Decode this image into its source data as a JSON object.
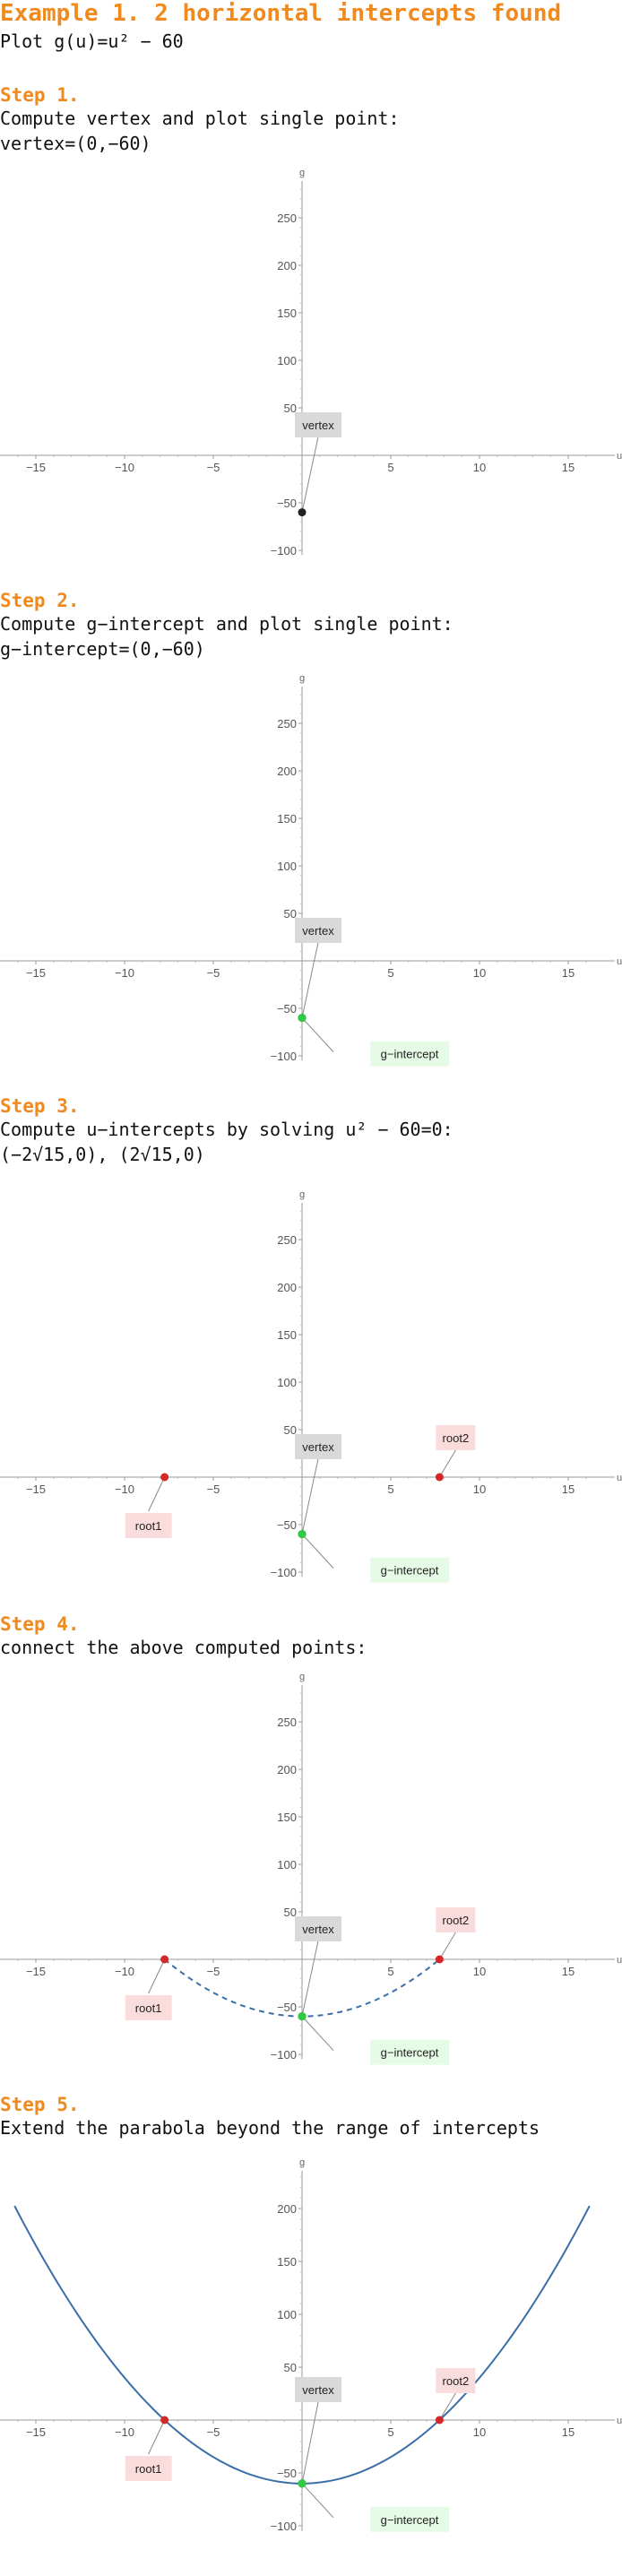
{
  "header": {
    "title": "Example 1. 2 horizontal intercepts found",
    "subtitle": "Plot g(u)=u² − 60"
  },
  "steps": [
    {
      "title": "Step 1.",
      "lines": [
        "Compute vertex and plot single point:",
        "vertex=(0,−60)"
      ]
    },
    {
      "title": "Step 2.",
      "lines": [
        "Compute g−intercept and plot single point:",
        "g−intercept=(0,−60)"
      ]
    },
    {
      "title": "Step 3.",
      "lines": [
        "Compute u−intercepts by solving u² − 60=0:",
        "(−2√15,0),  (2√15,0)"
      ]
    },
    {
      "title": "Step 4.",
      "lines": [
        "connect the above computed points:"
      ]
    },
    {
      "title": "Step 5.",
      "lines": [
        "Extend the parabola beyond the range of intercepts"
      ]
    }
  ],
  "colors": {
    "heading": "#f08a1e",
    "vertex_point": "#222222",
    "g_intercept_point": "#2ecc40",
    "root_point": "#d62728",
    "curve": "#3b6ea8",
    "vertex_label_bg": "#d9d9d9",
    "g_label_bg": "#e6fbe6",
    "root_label_bg": "#fbdcdc"
  },
  "chart_data": [
    {
      "type": "scatter",
      "xlabel": "u",
      "ylabel": "g",
      "xlim": [
        -17,
        17
      ],
      "ylim": [
        -105,
        280
      ],
      "xticks": [
        -15,
        -10,
        -5,
        5,
        10,
        15
      ],
      "yticks": [
        -100,
        -50,
        50,
        100,
        150,
        200,
        250
      ],
      "grid": false,
      "points": [
        {
          "x": 0,
          "y": -60,
          "label": "vertex",
          "kind": "vertex"
        }
      ],
      "curve": "none"
    },
    {
      "type": "scatter",
      "xlabel": "u",
      "ylabel": "g",
      "xlim": [
        -17,
        17
      ],
      "ylim": [
        -105,
        280
      ],
      "xticks": [
        -15,
        -10,
        -5,
        5,
        10,
        15
      ],
      "yticks": [
        -100,
        -50,
        50,
        100,
        150,
        200,
        250
      ],
      "grid": false,
      "points": [
        {
          "x": 0,
          "y": -60,
          "label": "vertex",
          "kind": "vertex"
        },
        {
          "x": 0,
          "y": -60,
          "label": "g−intercept",
          "kind": "g"
        }
      ],
      "curve": "none"
    },
    {
      "type": "scatter",
      "xlabel": "u",
      "ylabel": "g",
      "xlim": [
        -17,
        17
      ],
      "ylim": [
        -105,
        280
      ],
      "xticks": [
        -15,
        -10,
        -5,
        5,
        10,
        15
      ],
      "yticks": [
        -100,
        -50,
        50,
        100,
        150,
        200,
        250
      ],
      "grid": false,
      "points": [
        {
          "x": 0,
          "y": -60,
          "label": "vertex",
          "kind": "vertex"
        },
        {
          "x": 0,
          "y": -60,
          "label": "g−intercept",
          "kind": "g"
        },
        {
          "x": -7.746,
          "y": 0,
          "label": "root1",
          "kind": "root"
        },
        {
          "x": 7.746,
          "y": 0,
          "label": "root2",
          "kind": "root"
        }
      ],
      "curve": "none"
    },
    {
      "type": "line",
      "xlabel": "u",
      "ylabel": "g",
      "xlim": [
        -17,
        17
      ],
      "ylim": [
        -105,
        280
      ],
      "xticks": [
        -15,
        -10,
        -5,
        5,
        10,
        15
      ],
      "yticks": [
        -100,
        -50,
        50,
        100,
        150,
        200,
        250
      ],
      "grid": false,
      "points": [
        {
          "x": 0,
          "y": -60,
          "label": "vertex",
          "kind": "vertex"
        },
        {
          "x": 0,
          "y": -60,
          "label": "g−intercept",
          "kind": "g"
        },
        {
          "x": -7.746,
          "y": 0,
          "label": "root1",
          "kind": "root"
        },
        {
          "x": 7.746,
          "y": 0,
          "label": "root2",
          "kind": "root"
        }
      ],
      "curve": "dashed",
      "curve_domain": [
        -7.746,
        7.746
      ]
    },
    {
      "type": "line",
      "xlabel": "u",
      "ylabel": "g",
      "xlim": [
        -17,
        17
      ],
      "ylim": [
        -105,
        245
      ],
      "xticks": [
        -15,
        -10,
        -5,
        5,
        10,
        15
      ],
      "yticks": [
        -100,
        -50,
        50,
        100,
        150,
        200
      ],
      "grid": false,
      "points": [
        {
          "x": 0,
          "y": -60,
          "label": "vertex",
          "kind": "vertex"
        },
        {
          "x": 0,
          "y": -60,
          "label": "g−intercept",
          "kind": "g"
        },
        {
          "x": -7.746,
          "y": 0,
          "label": "root1",
          "kind": "root"
        },
        {
          "x": 7.746,
          "y": 0,
          "label": "root2",
          "kind": "root"
        }
      ],
      "curve": "solid",
      "curve_domain": [
        -16.2,
        16.2
      ]
    }
  ]
}
